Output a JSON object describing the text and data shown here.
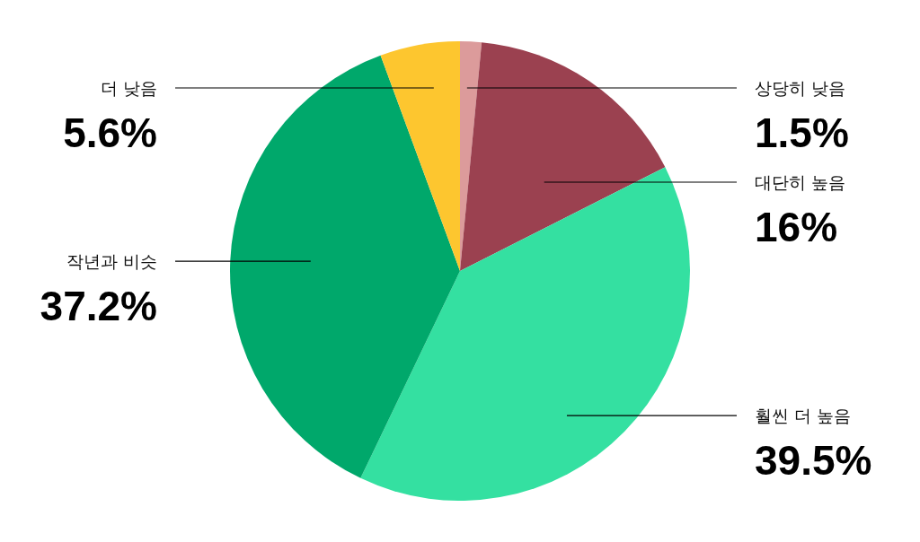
{
  "chart_data": {
    "type": "pie",
    "categories": [
      "상당히 낮음",
      "대단히 높음",
      "훨씬 더 높음",
      "작년과 비슷",
      "더 낮음"
    ],
    "values": [
      1.5,
      16,
      39.5,
      37.2,
      5.6
    ],
    "colors": [
      "#dc9b9b",
      "#9b4150",
      "#34e0a1",
      "#00a86b",
      "#fdc62f"
    ],
    "value_labels": [
      "1.5%",
      "16%",
      "39.5%",
      "37.2%",
      "5.6%"
    ]
  }
}
